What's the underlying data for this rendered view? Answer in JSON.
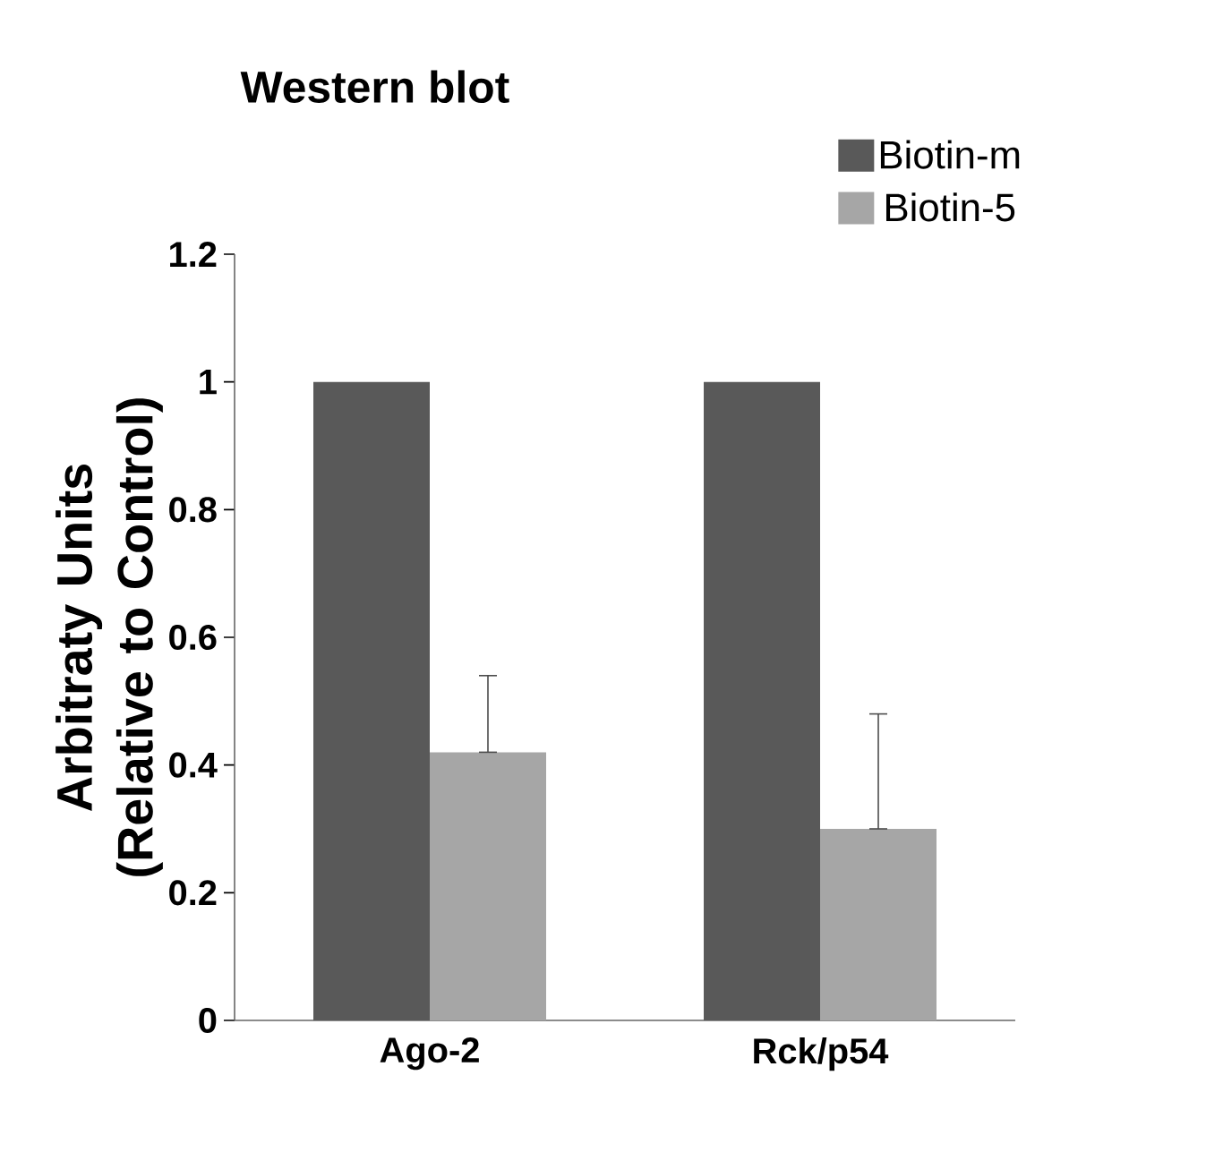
{
  "chart_data": {
    "type": "bar",
    "title": "Western blot",
    "ylabel": "Arbitraty Units (Relative to Control)",
    "categories": [
      "Ago-2",
      "Rck/p54"
    ],
    "series": [
      {
        "name": "Biotin-m",
        "color": "#595959",
        "values": [
          1,
          1
        ],
        "errors": [
          null,
          null
        ]
      },
      {
        "name": "Biotin-5",
        "color": "#a6a6a6",
        "values": [
          0.42,
          0.3
        ],
        "errors": [
          [
            0.42,
            0.54
          ],
          [
            0.3,
            0.48
          ]
        ]
      }
    ],
    "ylim": [
      0,
      1.2
    ],
    "yticks": [
      0,
      0.2,
      0.4,
      0.6,
      0.8,
      1,
      1.2
    ],
    "legend": "top right",
    "grid": false
  }
}
